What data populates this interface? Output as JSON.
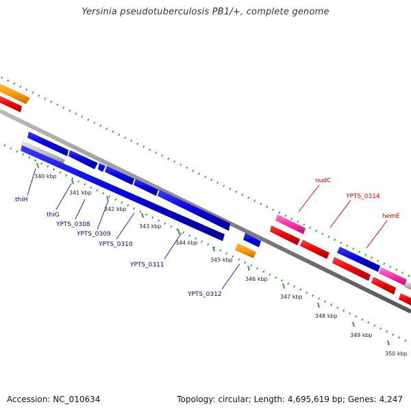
{
  "title": "Yersinia pseudotuberculosis PB1/+, complete genome",
  "footer": {
    "accession": "Accession: NC_010634",
    "summary": "Topology: circular; Length: 4,695,619 bp; Genes: 4,247"
  },
  "colors": {
    "cds_forward": "#0000e0",
    "cds_reverse": "#ee0000",
    "rna": "#ff9900",
    "pseudo": "#ff33aa",
    "other": "#c0c0c0",
    "backbone": "#888888",
    "tick": "#339933",
    "label_forward": "#00008b",
    "label_reverse": "#cc0000"
  },
  "ticks": [
    "340 kbp",
    "341 kbp",
    "342 kbp",
    "343 kbp",
    "344 kbp",
    "345 kbp",
    "346 kbp",
    "347 kbp",
    "348 kbp",
    "349 kbp",
    "350 kbp"
  ],
  "gene_labels_forward": [
    "thiH",
    "thiG",
    "YPTS_0308",
    "YPTS_0309",
    "YPTS_0310",
    "YPTS_0311",
    "YPTS_0312"
  ],
  "gene_labels_reverse": [
    "nudC",
    "YPTS_0314",
    "hemE"
  ]
}
